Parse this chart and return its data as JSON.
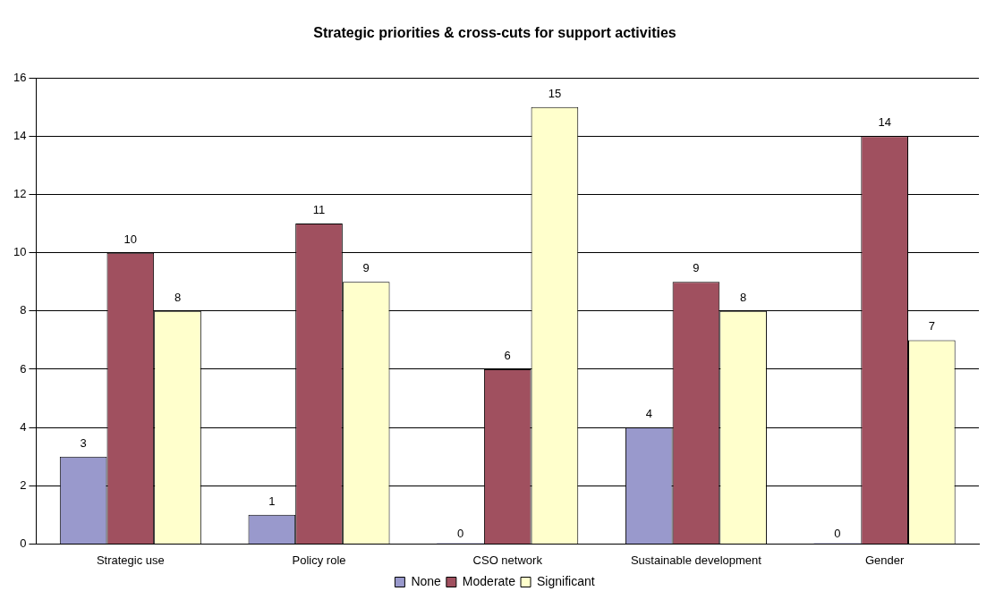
{
  "chart_data": {
    "type": "bar",
    "title": "Strategic priorities & cross-cuts for support activities",
    "categories": [
      "Strategic use",
      "Policy role",
      "CSO network",
      "Sustainable development",
      "Gender"
    ],
    "series": [
      {
        "name": "None",
        "color": "#9999cc",
        "values": [
          3,
          1,
          0,
          4,
          0
        ]
      },
      {
        "name": "Moderate",
        "color": "#a0505f",
        "values": [
          10,
          11,
          6,
          9,
          14
        ]
      },
      {
        "name": "Significant",
        "color": "#ffffcc",
        "values": [
          8,
          9,
          15,
          8,
          7
        ]
      }
    ],
    "ylim": [
      0,
      16
    ],
    "yticks": [
      0,
      2,
      4,
      6,
      8,
      10,
      12,
      14,
      16
    ],
    "grid": "y",
    "legend": "bottom",
    "data_labels": true
  }
}
